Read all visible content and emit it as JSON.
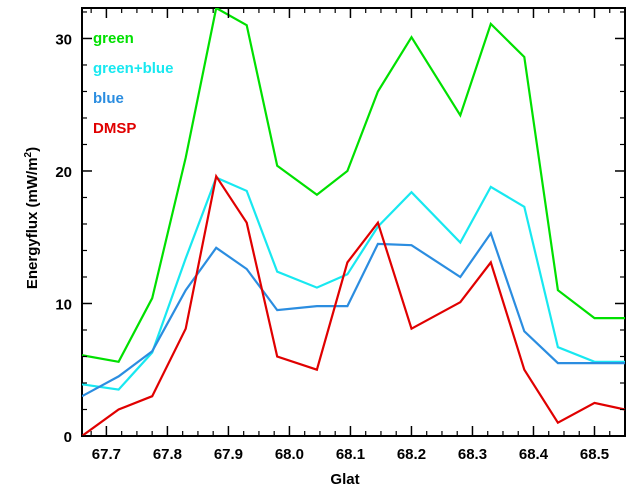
{
  "chart_data": {
    "type": "line",
    "xlabel": "Glat",
    "ylabel": "Energyflux (mW/m",
    "ylabel_sup": "2",
    "ylabel_close": ")",
    "xlim": [
      67.66,
      68.55
    ],
    "ylim": [
      0,
      32.3
    ],
    "xticks": [
      {
        "value": 67.7,
        "label": "67.7"
      },
      {
        "value": 67.8,
        "label": "67.8"
      },
      {
        "value": 67.9,
        "label": "67.9"
      },
      {
        "value": 68.0,
        "label": "68.0"
      },
      {
        "value": 68.1,
        "label": "68.1"
      },
      {
        "value": 68.2,
        "label": "68.2"
      },
      {
        "value": 68.3,
        "label": "68.3"
      },
      {
        "value": 68.4,
        "label": "68.4"
      },
      {
        "value": 68.5,
        "label": "68.5"
      }
    ],
    "xminor_step": 0.025,
    "yticks": [
      {
        "value": 0,
        "label": "0"
      },
      {
        "value": 10,
        "label": "10"
      },
      {
        "value": 20,
        "label": "20"
      },
      {
        "value": 30,
        "label": "30"
      }
    ],
    "yminor_step": 2,
    "grid": false,
    "legend_position": "top-left",
    "series": [
      {
        "name": "green",
        "color": "#00e000",
        "x": [
          67.66,
          67.72,
          67.775,
          67.83,
          67.88,
          67.93,
          67.98,
          68.045,
          68.095,
          68.145,
          68.2,
          68.28,
          68.33,
          68.385,
          68.44,
          68.5,
          68.55
        ],
        "y": [
          6.1,
          5.6,
          10.4,
          21.0,
          32.3,
          31.0,
          20.4,
          18.2,
          20.0,
          26.0,
          30.1,
          24.2,
          31.1,
          28.6,
          11.0,
          8.9,
          8.9
        ]
      },
      {
        "name": "green+blue",
        "color": "#18e8f0",
        "x": [
          67.66,
          67.72,
          67.775,
          67.83,
          67.88,
          67.93,
          67.98,
          68.045,
          68.095,
          68.145,
          68.2,
          68.28,
          68.33,
          68.385,
          68.44,
          68.5,
          68.55
        ],
        "y": [
          3.9,
          3.5,
          6.3,
          13.4,
          19.5,
          18.5,
          12.4,
          11.2,
          12.2,
          15.8,
          18.4,
          14.6,
          18.8,
          17.3,
          6.7,
          5.6,
          5.6
        ]
      },
      {
        "name": "blue",
        "color": "#2b8de0",
        "x": [
          67.66,
          67.72,
          67.775,
          67.83,
          67.88,
          67.93,
          67.98,
          68.045,
          68.095,
          68.145,
          68.2,
          68.28,
          68.33,
          68.385,
          68.44,
          68.5,
          68.55
        ],
        "y": [
          3.0,
          4.5,
          6.4,
          11.0,
          14.2,
          12.6,
          9.5,
          9.8,
          9.8,
          14.5,
          14.4,
          12.0,
          15.3,
          7.9,
          5.5,
          5.5,
          5.5
        ]
      },
      {
        "name": "DMSP",
        "color": "#e00000",
        "x": [
          67.66,
          67.72,
          67.775,
          67.83,
          67.88,
          67.93,
          67.98,
          68.045,
          68.095,
          68.145,
          68.2,
          68.28,
          68.33,
          68.385,
          68.44,
          68.5,
          68.55
        ],
        "y": [
          0.0,
          2.0,
          3.0,
          8.1,
          19.6,
          16.1,
          6.0,
          5.0,
          13.1,
          16.1,
          8.1,
          10.1,
          13.1,
          5.0,
          1.0,
          2.5,
          2.0
        ]
      }
    ]
  }
}
